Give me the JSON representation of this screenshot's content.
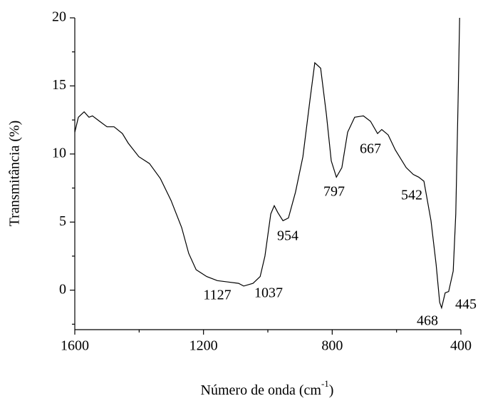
{
  "chart_data": {
    "type": "line",
    "ylabel": "Transmitância (%)",
    "xlabel": [
      "Número de onda (cm",
      "-1",
      ")"
    ],
    "x": [
      1600,
      1589,
      1571,
      1556,
      1545,
      1523,
      1500,
      1478,
      1452,
      1434,
      1401,
      1368,
      1334,
      1301,
      1268,
      1246,
      1223,
      1190,
      1157,
      1124,
      1091,
      1075,
      1046,
      1024,
      1009,
      991,
      980,
      969,
      953,
      936,
      914,
      891,
      869,
      854,
      836,
      818,
      803,
      787,
      770,
      752,
      730,
      703,
      681,
      659,
      646,
      626,
      604,
      570,
      548,
      531,
      515,
      493,
      477,
      466,
      460,
      449,
      438,
      424,
      416,
      409,
      404
    ],
    "series": [
      {
        "color": "#000000",
        "values": [
          11.6,
          12.7,
          13.1,
          12.7,
          12.8,
          12.4,
          12.0,
          12.0,
          11.5,
          10.8,
          9.8,
          9.3,
          8.2,
          6.6,
          4.6,
          2.7,
          1.5,
          1.0,
          0.7,
          0.6,
          0.5,
          0.3,
          0.5,
          1.0,
          2.5,
          5.6,
          6.2,
          5.7,
          5.1,
          5.3,
          7.2,
          9.8,
          14.0,
          16.7,
          16.3,
          12.9,
          9.5,
          8.3,
          9.0,
          11.6,
          12.7,
          12.8,
          12.4,
          11.5,
          11.8,
          11.4,
          10.3,
          9.0,
          8.5,
          8.3,
          8.0,
          5.1,
          1.9,
          -0.9,
          -1.3,
          -0.2,
          -0.1,
          1.4,
          5.6,
          13.5,
          20.0
        ]
      }
    ],
    "xlim": [
      1600,
      400
    ],
    "xticks": [
      1600,
      1200,
      800,
      400
    ],
    "xminor": [
      1400,
      1000,
      600
    ],
    "ylim": [
      -2.9,
      20
    ],
    "yticks": [
      0,
      5,
      10,
      15,
      20
    ],
    "yminor": [
      -2.5,
      2.5,
      7.5,
      12.5,
      17.5
    ],
    "annotations": [
      "1127",
      "1037",
      "954",
      "797",
      "667",
      "542",
      "468",
      "445"
    ]
  }
}
